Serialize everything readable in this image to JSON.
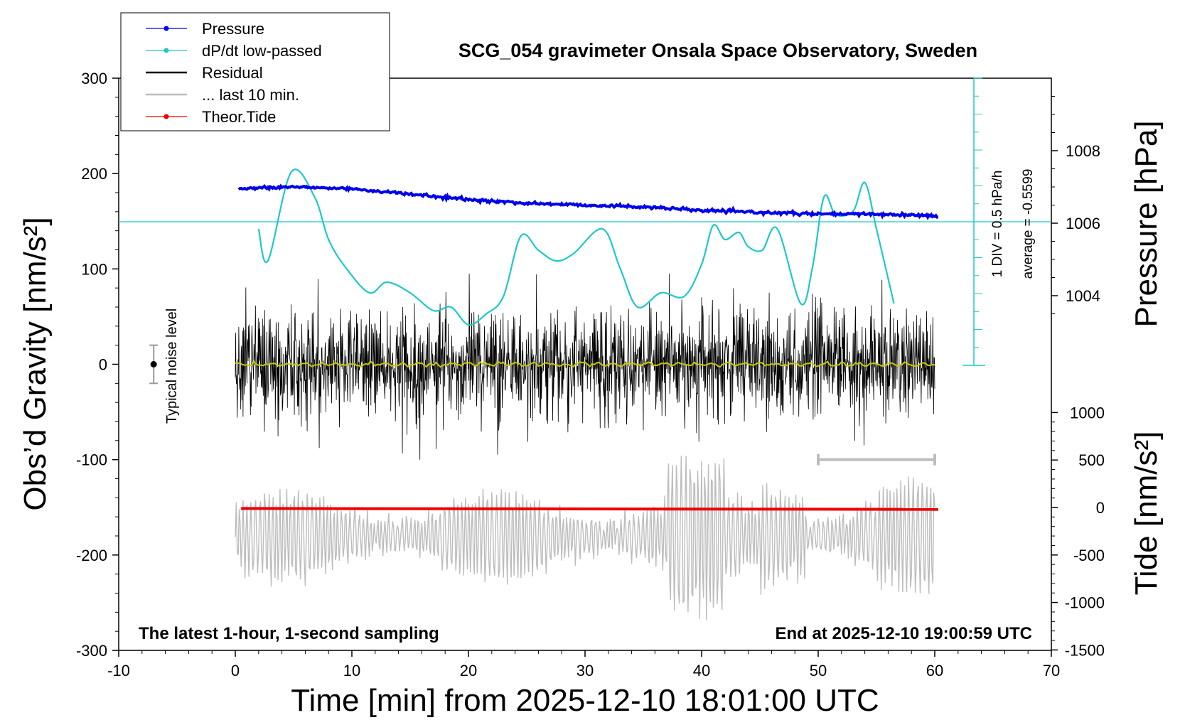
{
  "chart_data": {
    "type": "line",
    "title": "SCG_054 gravimeter Onsala Space Observatory, Sweden",
    "xlabel": "Time [min] from 2025-12-10 18:01:00 UTC",
    "ylabel_left": "Obs’d Gravity [nm/s²]",
    "ylabel_pressure": "Pressure [hPa]",
    "ylabel_tide": "Tide [nm/s²]",
    "xlim": [
      -10,
      70
    ],
    "ylim_left": [
      -300,
      300
    ],
    "x_ticks": [
      "-10",
      "0",
      "10",
      "20",
      "30",
      "40",
      "50",
      "60",
      "70"
    ],
    "y_ticks_left": [
      "300",
      "200",
      "100",
      "0",
      "-100",
      "-200",
      "-300"
    ],
    "pressure_ticks": [
      "1008",
      "1006",
      "1004"
    ],
    "tide_ticks": [
      "1000",
      "500",
      "0",
      "-500",
      "-1000",
      "-1500"
    ],
    "legend_position": "top-left",
    "legend": [
      {
        "label": "Pressure",
        "color": "#0000ee",
        "marker": "dot"
      },
      {
        "label": "dP/dt low-passed",
        "color": "#1ec8c8",
        "marker": "dot"
      },
      {
        "label": "Residual",
        "color": "#000000",
        "marker": "line"
      },
      {
        "label": "... last 10 min.",
        "color": "#bdbdbd",
        "marker": "line"
      },
      {
        "label": "Theor.Tide",
        "color": "#ee0000",
        "marker": "dot"
      }
    ],
    "annotations": {
      "noise_label": "Typical noise level",
      "scale_div": "1 DIV = 0.5 hPa/h",
      "scale_avg": "average = -0.5599",
      "bottom_left": "The latest 1-hour, 1-second sampling",
      "bottom_right": "End at 2025-12-10 19:00:59 UTC"
    },
    "series": [
      {
        "name": "Pressure",
        "unit": "hPa",
        "color": "#0000ee",
        "x": [
          0.3,
          5,
          10,
          15,
          20,
          25,
          30,
          35,
          40,
          45,
          50,
          55,
          60.3
        ],
        "y": [
          1006.95,
          1007.0,
          1006.95,
          1006.8,
          1006.65,
          1006.55,
          1006.5,
          1006.45,
          1006.35,
          1006.3,
          1006.25,
          1006.25,
          1006.2
        ]
      },
      {
        "name": "dP/dt low-passed",
        "unit": "hPa/h",
        "color": "#1ec8c8",
        "x": [
          2,
          2.8,
          4.8,
          6.8,
          8,
          9.5,
          11.5,
          13,
          15,
          17,
          18.5,
          20,
          21.5,
          23,
          24.5,
          26,
          27.5,
          29,
          31.5,
          33,
          34.5,
          36.5,
          38.5,
          40,
          41,
          42,
          43.2,
          44,
          45.2,
          46.5,
          48.5,
          49.5,
          50.5,
          51.5,
          53,
          54,
          55,
          56.5
        ],
        "y": [
          -0.1,
          -0.55,
          0.7,
          0.35,
          -0.25,
          -0.65,
          -1.0,
          -0.85,
          -1.0,
          -1.25,
          -1.2,
          -1.45,
          -1.3,
          -1.05,
          -0.2,
          -0.4,
          -0.55,
          -0.45,
          -0.1,
          -0.65,
          -1.2,
          -1.0,
          -1.05,
          -0.6,
          -0.05,
          -0.25,
          -0.15,
          -0.35,
          -0.4,
          -0.1,
          -1.15,
          -0.65,
          0.35,
          0.1,
          0.15,
          0.55,
          -0.1,
          -1.15
        ]
      },
      {
        "name": "Residual",
        "unit": "nm/s²",
        "color": "#000000",
        "x_range": [
          0,
          60
        ],
        "amplitude_nm_s2": [
          -100,
          95
        ]
      },
      {
        "name": "Residual (low-passed)",
        "unit": "nm/s²",
        "color": "#c8c800",
        "x_range": [
          0,
          60
        ],
        "approx_value": 0
      },
      {
        "name": "... last 10 min.",
        "unit": "nm/s²",
        "color": "#bdbdbd",
        "x_range": [
          50,
          60
        ],
        "level": -100
      },
      {
        "name": "Theor.Tide",
        "unit": "nm/s²",
        "color": "#ee0000",
        "x": [
          0.5,
          60.3
        ],
        "y": [
          -10,
          -20
        ]
      },
      {
        "name": "Seismic residual (grey)",
        "unit": "nm/s²",
        "color": "#bdbdbd",
        "x_range": [
          0,
          60
        ],
        "amplitude_nm_s2": [
          -1350,
          600
        ]
      }
    ],
    "noise_level": {
      "x": -7,
      "center": 0,
      "range": [
        -20,
        20
      ]
    }
  }
}
